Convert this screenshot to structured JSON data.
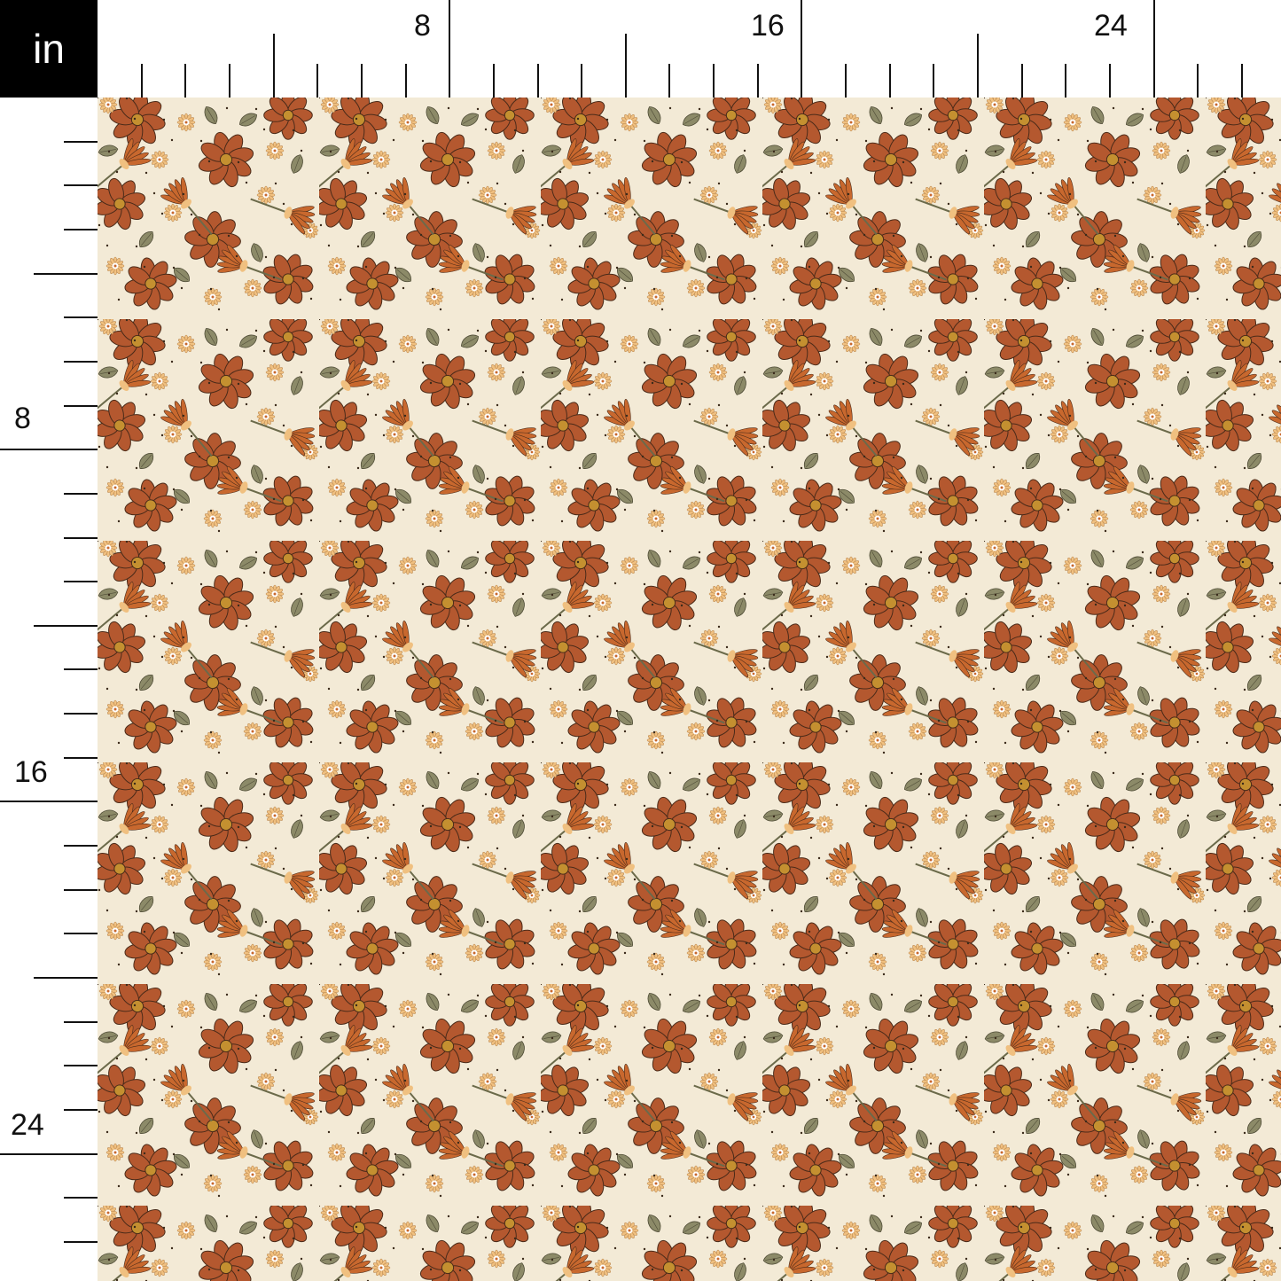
{
  "unit_label": "in",
  "top_ruler": {
    "labels": [
      "8",
      "16",
      "24"
    ]
  },
  "left_ruler": {
    "labels": [
      "8",
      "16",
      "24"
    ]
  },
  "fabric": {
    "pattern": "floral-daisy",
    "colors": {
      "background": "#f3ead6",
      "large_flower": "#b4582f",
      "outline": "#4a2a18",
      "flower_center": "#c49030",
      "small_daisy": "#f0c080",
      "leaf": "#8c8a68",
      "stem_petal": "#c8682e"
    }
  }
}
